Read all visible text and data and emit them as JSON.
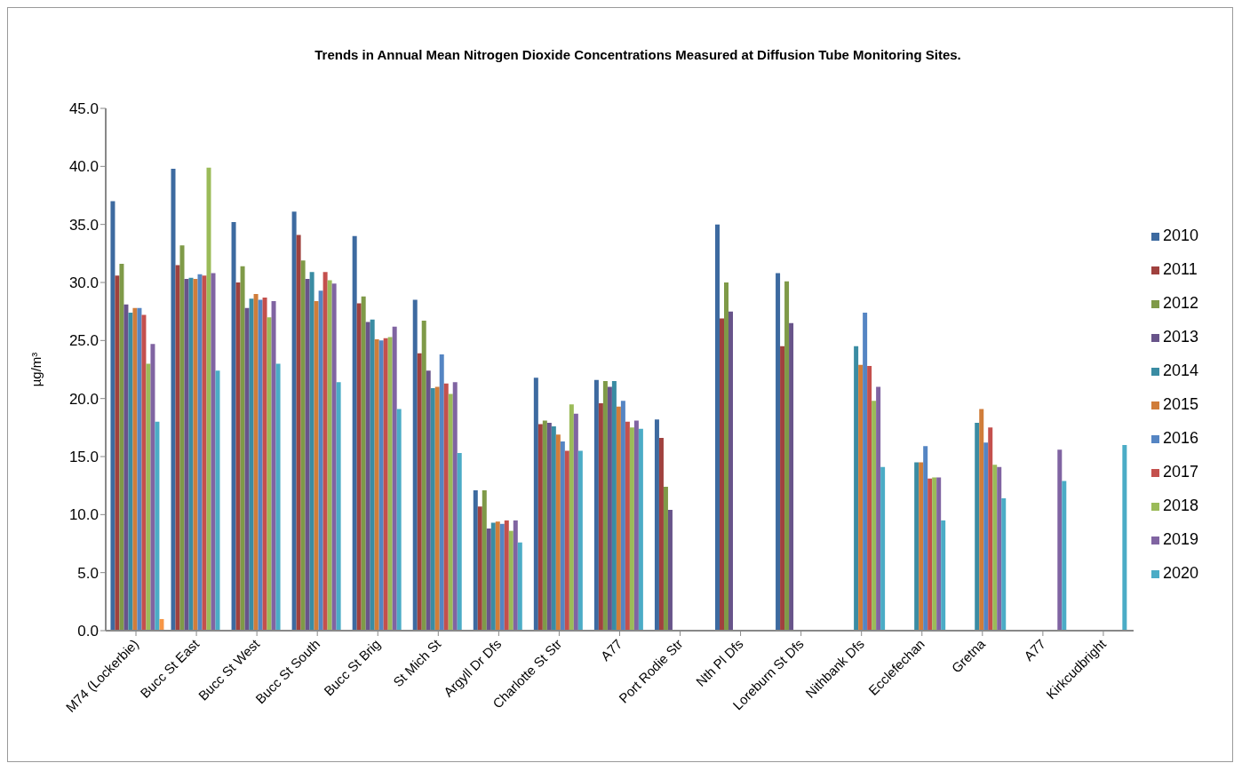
{
  "chart_data": {
    "type": "bar",
    "title": "Trends in Annual Mean Nitrogen Dioxide Concentrations Measured at Diffusion Tube Monitoring Sites.",
    "ylabel": "µg/m³",
    "categories": [
      "M74 (Lockerbie)",
      "Bucc St East",
      "Bucc St West",
      "Bucc St South",
      "Bucc St Brig",
      "St Mich St",
      "Argyll Dr Dfs",
      "Charlotte St Str",
      "A77",
      "Port Rodie Str",
      "Nth Pl Dfs",
      "Loreburn St Dfs",
      "Nithbank Dfs",
      "Ecclefechan",
      "Gretna",
      "A77",
      "Kirkcudbright"
    ],
    "series": [
      {
        "name": "2010",
        "color": "#3d6aa0",
        "values": [
          37.0,
          39.8,
          35.2,
          36.1,
          34.0,
          28.5,
          12.1,
          21.8,
          21.6,
          18.2,
          35.0,
          30.8,
          null,
          null,
          null,
          null,
          null
        ]
      },
      {
        "name": "2011",
        "color": "#a0413e",
        "values": [
          30.6,
          31.5,
          30.0,
          34.1,
          28.2,
          23.9,
          10.7,
          17.8,
          19.6,
          16.6,
          26.9,
          24.5,
          null,
          null,
          null,
          null,
          null
        ]
      },
      {
        "name": "2012",
        "color": "#7f9a48",
        "values": [
          31.6,
          33.2,
          31.4,
          31.9,
          28.8,
          26.7,
          12.1,
          18.1,
          21.5,
          12.4,
          30.0,
          30.1,
          null,
          null,
          null,
          null,
          null
        ]
      },
      {
        "name": "2013",
        "color": "#68548a",
        "values": [
          28.1,
          30.3,
          27.8,
          30.3,
          26.6,
          22.4,
          8.8,
          17.9,
          21.0,
          10.4,
          27.5,
          26.5,
          null,
          null,
          null,
          null,
          null
        ]
      },
      {
        "name": "2014",
        "color": "#3a8ca3",
        "values": [
          27.4,
          30.4,
          28.6,
          30.9,
          26.8,
          20.9,
          9.3,
          17.6,
          21.5,
          null,
          null,
          null,
          24.5,
          14.5,
          17.9,
          null,
          null
        ]
      },
      {
        "name": "2015",
        "color": "#d07d3a",
        "values": [
          27.8,
          30.3,
          29.0,
          28.4,
          25.1,
          21.0,
          9.4,
          16.9,
          19.3,
          null,
          null,
          null,
          22.9,
          14.5,
          19.1,
          null,
          null
        ]
      },
      {
        "name": "2016",
        "color": "#5585c3",
        "values": [
          27.8,
          30.7,
          28.5,
          29.3,
          25.0,
          23.8,
          9.2,
          16.3,
          19.8,
          null,
          null,
          null,
          27.4,
          15.9,
          16.2,
          null,
          null
        ]
      },
      {
        "name": "2017",
        "color": "#c4504d",
        "values": [
          27.2,
          30.6,
          28.7,
          30.9,
          25.2,
          21.3,
          9.5,
          15.5,
          18.0,
          null,
          null,
          null,
          22.8,
          13.1,
          17.5,
          null,
          null
        ]
      },
      {
        "name": "2018",
        "color": "#9bbb59",
        "values": [
          23.0,
          39.9,
          27.0,
          30.2,
          25.3,
          20.4,
          8.6,
          19.5,
          17.5,
          null,
          null,
          null,
          19.8,
          13.2,
          14.3,
          null,
          null
        ]
      },
      {
        "name": "2019",
        "color": "#8064a2",
        "values": [
          24.7,
          30.8,
          28.4,
          29.9,
          26.2,
          21.4,
          9.5,
          18.7,
          18.1,
          null,
          null,
          null,
          21.0,
          13.2,
          14.1,
          15.6,
          null
        ]
      },
      {
        "name": "2020",
        "color": "#4bacc6",
        "values": [
          18.0,
          22.4,
          23.0,
          21.4,
          19.1,
          15.3,
          7.6,
          15.5,
          17.4,
          null,
          null,
          null,
          14.1,
          9.5,
          11.4,
          12.9,
          16.0
        ]
      },
      {
        "color": "#f79646",
        "values": [
          1.0,
          null,
          null,
          null,
          null,
          null,
          null,
          null,
          null,
          null,
          null,
          null,
          null,
          null,
          null,
          null,
          null
        ]
      }
    ],
    "ylim": [
      0,
      45
    ],
    "yticks": [
      {
        "value": 0,
        "label": "0.0"
      },
      {
        "value": 5,
        "label": "5.0"
      },
      {
        "value": 10,
        "label": "10.0"
      },
      {
        "value": 15,
        "label": "15.0"
      },
      {
        "value": 20,
        "label": "20.0"
      },
      {
        "value": 25,
        "label": "25.0"
      },
      {
        "value": 30,
        "label": "30.0"
      },
      {
        "value": 35,
        "label": "35.0"
      },
      {
        "value": 40,
        "label": "40.0"
      },
      {
        "value": 45,
        "label": "45.0"
      }
    ],
    "grid": false,
    "legend": "right"
  }
}
